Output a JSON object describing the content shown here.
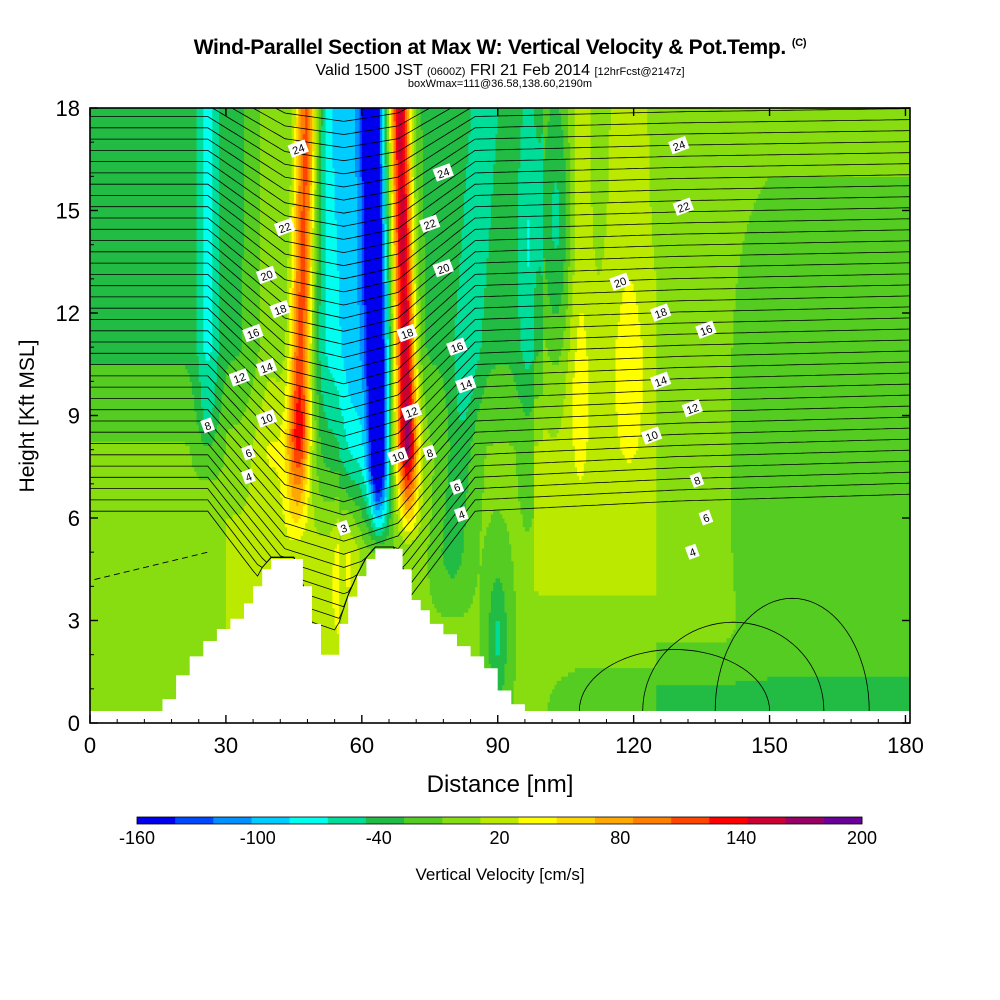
{
  "chart_data": {
    "type": "contour",
    "title": "Wind-Parallel Section at Max W: Vertical Velocity & Pot.Temp.",
    "title_mark": "(C)",
    "subtitle": {
      "valid": "Valid 1500 JST",
      "utc": "(0600Z)",
      "date": "FRI 21 Feb 2014",
      "forecast": "[12hrFcst@2147z]"
    },
    "subline": "boxWmax=111@36.58,138.60,2190m",
    "xlabel": "Distance [nm]",
    "ylabel": "Height [Kft MSL]",
    "xlim": [
      0,
      181
    ],
    "ylim": [
      0,
      18
    ],
    "xticks": [
      "0",
      "30",
      "60",
      "90",
      "120",
      "150",
      "180"
    ],
    "yticks": [
      "0",
      "3",
      "6",
      "9",
      "12",
      "15",
      "18"
    ],
    "colorbar": {
      "label": "Vertical Velocity [cm/s]",
      "range": [
        -160,
        200
      ],
      "step": 20,
      "tick_labels": [
        "-160",
        "-100",
        "-40",
        "20",
        "80",
        "140",
        "200"
      ],
      "colors": [
        "#0000ee",
        "#0048ff",
        "#0090ff",
        "#00ccff",
        "#00ffee",
        "#00dd99",
        "#22bb44",
        "#55cc22",
        "#88dd11",
        "#bbea00",
        "#ffff00",
        "#ffd700",
        "#ffa800",
        "#ff7f00",
        "#ff4500",
        "#ff0000",
        "#cc0033",
        "#990066",
        "#6a0099"
      ]
    },
    "terrain_profile": {
      "x": [
        0,
        13,
        16,
        19,
        22,
        25,
        28,
        31,
        34,
        36,
        38,
        40,
        42,
        45,
        47,
        49,
        51,
        53,
        55,
        57,
        59,
        61,
        63,
        65,
        67,
        69,
        71,
        73,
        75,
        78,
        81,
        84,
        87,
        90,
        93,
        96,
        98,
        101,
        181
      ],
      "height": [
        0.35,
        0.35,
        0.7,
        1.4,
        1.95,
        2.4,
        2.75,
        3.05,
        3.5,
        4.0,
        4.5,
        4.8,
        4.8,
        4.8,
        4.0,
        2.9,
        2.0,
        2.0,
        2.9,
        3.7,
        4.3,
        4.8,
        5.1,
        5.1,
        5.1,
        4.5,
        3.6,
        3.3,
        2.9,
        2.6,
        2.25,
        1.95,
        1.6,
        0.95,
        0.55,
        0.35,
        0.35,
        0.35,
        0.35
      ]
    },
    "theta_contours": {
      "labels": [
        {
          "text": "24",
          "x": 46,
          "y": 16.8
        },
        {
          "text": "22",
          "x": 43,
          "y": 14.5
        },
        {
          "text": "20",
          "x": 39,
          "y": 13.1
        },
        {
          "text": "18",
          "x": 42,
          "y": 12.1
        },
        {
          "text": "16",
          "x": 36,
          "y": 11.4
        },
        {
          "text": "14",
          "x": 39,
          "y": 10.4
        },
        {
          "text": "12",
          "x": 33,
          "y": 10.1
        },
        {
          "text": "10",
          "x": 39,
          "y": 8.9
        },
        {
          "text": "8",
          "x": 26,
          "y": 8.7
        },
        {
          "text": "6",
          "x": 35,
          "y": 7.9
        },
        {
          "text": "4",
          "x": 35,
          "y": 7.2
        },
        {
          "text": "3",
          "x": 56,
          "y": 5.7
        },
        {
          "text": "24",
          "x": 78,
          "y": 16.1
        },
        {
          "text": "22",
          "x": 75,
          "y": 14.6
        },
        {
          "text": "20",
          "x": 78,
          "y": 13.3
        },
        {
          "text": "18",
          "x": 70,
          "y": 11.4
        },
        {
          "text": "16",
          "x": 81,
          "y": 11.0
        },
        {
          "text": "14",
          "x": 83,
          "y": 9.9
        },
        {
          "text": "12",
          "x": 71,
          "y": 9.1
        },
        {
          "text": "10",
          "x": 68,
          "y": 7.8
        },
        {
          "text": "8",
          "x": 75,
          "y": 7.9
        },
        {
          "text": "6",
          "x": 81,
          "y": 6.9
        },
        {
          "text": "4",
          "x": 82,
          "y": 6.1
        },
        {
          "text": "24",
          "x": 130,
          "y": 16.9
        },
        {
          "text": "22",
          "x": 131,
          "y": 15.1
        },
        {
          "text": "20",
          "x": 117,
          "y": 12.9
        },
        {
          "text": "18",
          "x": 126,
          "y": 12.0
        },
        {
          "text": "16",
          "x": 136,
          "y": 11.5
        },
        {
          "text": "14",
          "x": 126,
          "y": 10.0
        },
        {
          "text": "12",
          "x": 133,
          "y": 9.2
        },
        {
          "text": "10",
          "x": 124,
          "y": 8.4
        },
        {
          "text": "8",
          "x": 134,
          "y": 7.1
        },
        {
          "text": "6",
          "x": 136,
          "y": 6.0
        },
        {
          "text": "4",
          "x": 133,
          "y": 5.0
        }
      ]
    }
  }
}
